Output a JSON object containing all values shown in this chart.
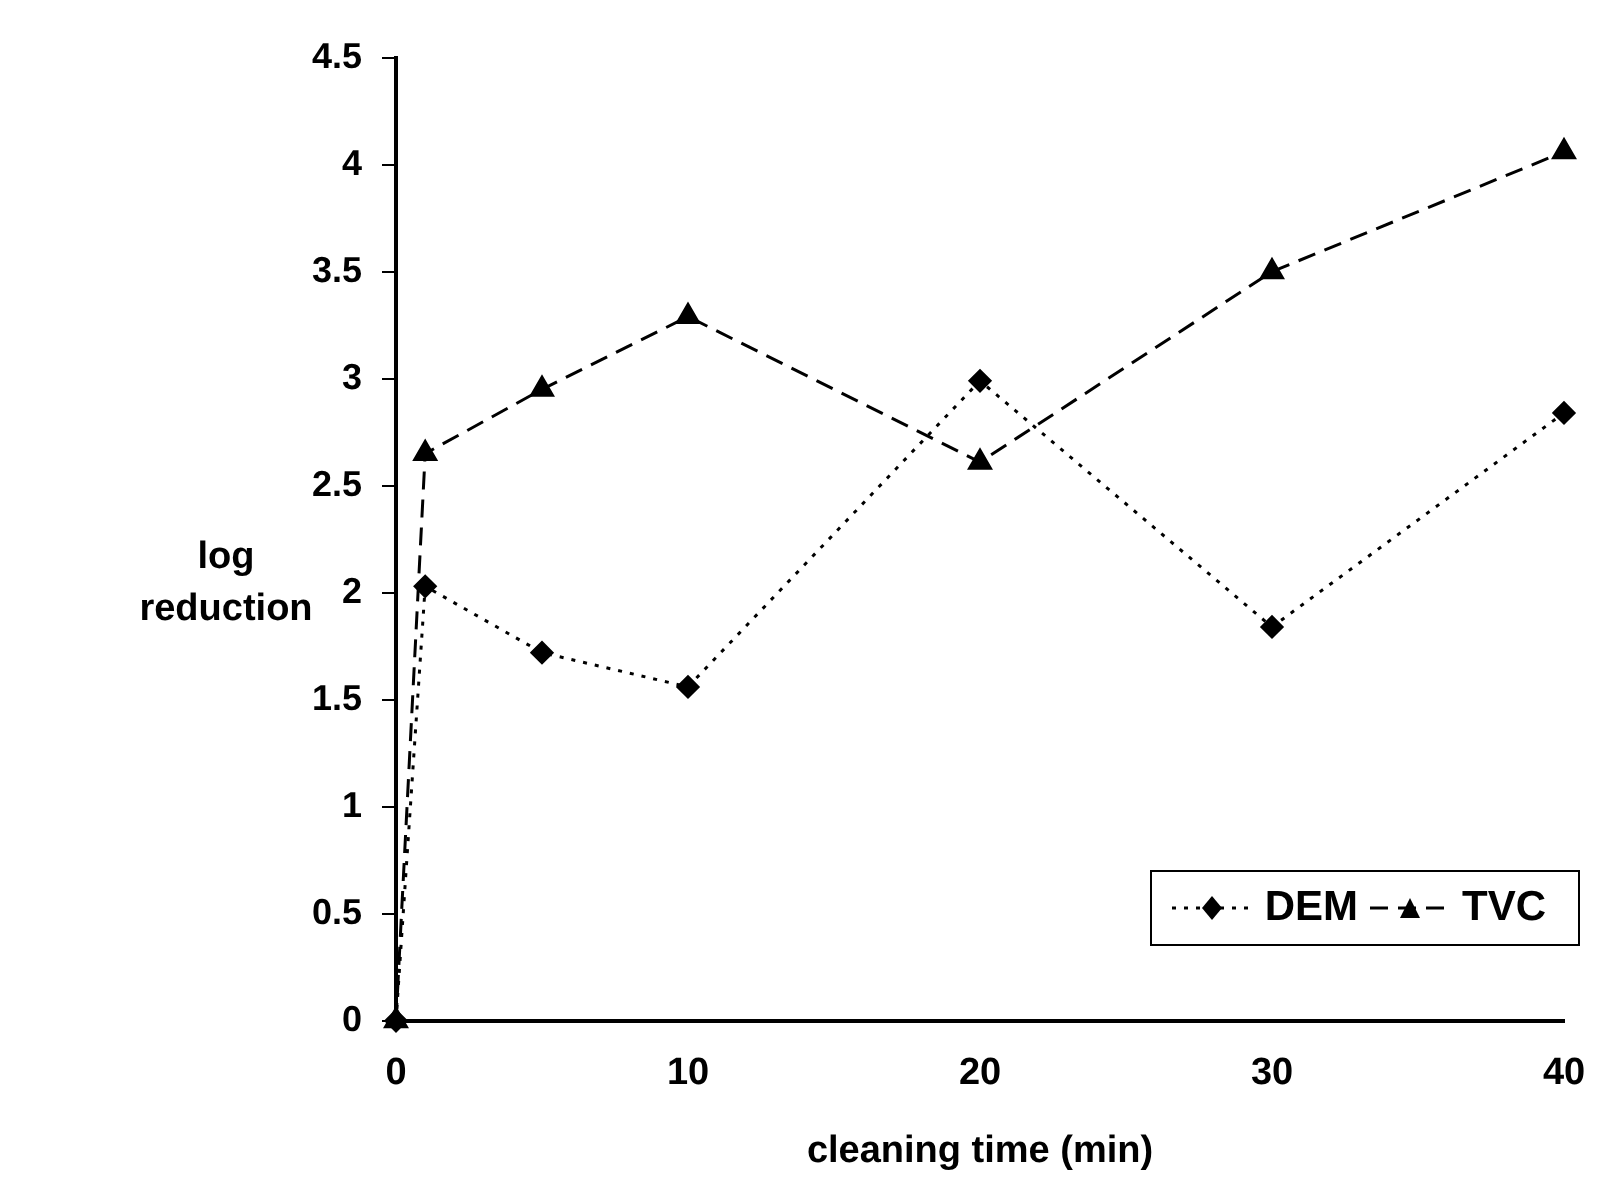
{
  "chart_data": {
    "type": "line",
    "xlabel": "cleaning time (min)",
    "ylabel": "log reduction",
    "xlim": [
      0,
      40
    ],
    "xticks": [
      0,
      10,
      20,
      30,
      40
    ],
    "ylim": [
      0,
      4.5
    ],
    "yticks": [
      0,
      0.5,
      1,
      1.5,
      2,
      2.5,
      3,
      3.5,
      4,
      4.5
    ],
    "grid": false,
    "legend": "bottom right",
    "series": [
      {
        "name": "DEM",
        "color": "#000000",
        "marker": "diamond",
        "line_style": "dotted",
        "x": [
          0,
          1,
          5,
          10,
          20,
          30,
          40
        ],
        "values": [
          0,
          2.03,
          1.72,
          1.56,
          2.99,
          1.84,
          2.84
        ]
      },
      {
        "name": "TVC",
        "color": "#000000",
        "marker": "triangle",
        "line_style": "dashed",
        "x": [
          0,
          1,
          5,
          10,
          20,
          30,
          40
        ],
        "values": [
          0,
          2.65,
          2.95,
          3.29,
          2.61,
          3.5,
          4.06
        ]
      }
    ]
  }
}
